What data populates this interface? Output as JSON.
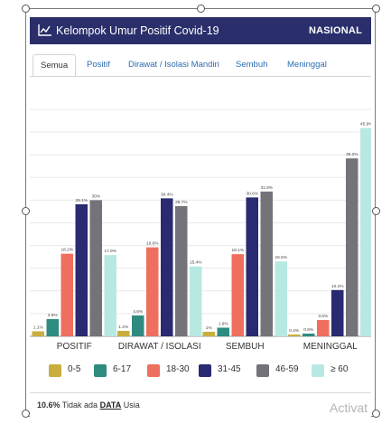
{
  "header": {
    "title": "Kelompok Umur Positif Covid-19",
    "badge": "NASIONAL",
    "icon": "line-chart-icon"
  },
  "tabs": [
    {
      "label": "Semua",
      "active": true
    },
    {
      "label": "Positif",
      "active": false
    },
    {
      "label": "Dirawat / Isolasi Mandiri",
      "active": false
    },
    {
      "label": "Sembuh",
      "active": false
    },
    {
      "label": "Meninggal",
      "active": false
    }
  ],
  "chart_data": {
    "type": "bar",
    "categories": [
      "POSITIF",
      "DIRAWAT / ISOLASI",
      "SEMBUH",
      "MENINGGAL"
    ],
    "series": [
      {
        "name": "0-5",
        "color": "#c9ae3e",
        "values": [
          1.1,
          1.2,
          1.0,
          0.4
        ],
        "labels": [
          "1.1%",
          "1.2%",
          "1%",
          "0.4%"
        ]
      },
      {
        "name": "6-17",
        "color": "#2e8b80",
        "values": [
          3.8,
          4.6,
          1.9,
          0.6
        ],
        "labels": [
          "3.8%",
          "4.6%",
          "1.9%",
          "0.6%"
        ]
      },
      {
        "name": "18-30",
        "color": "#ef6f5e",
        "values": [
          18.2,
          19.6,
          18.1,
          3.6
        ],
        "labels": [
          "18.2%",
          "19.6%",
          "18.1%",
          "3.6%"
        ]
      },
      {
        "name": "31-45",
        "color": "#2a2a72",
        "values": [
          29.1,
          30.4,
          30.6,
          10.2
        ],
        "labels": [
          "29.1%",
          "30.4%",
          "30.6%",
          "10.2%"
        ]
      },
      {
        "name": "46-59",
        "color": "#74737a",
        "values": [
          30.0,
          28.7,
          31.9,
          39.2
        ],
        "labels": [
          "30%",
          "28.7%",
          "31.9%",
          "39.2%"
        ]
      },
      {
        "name": "≥ 60",
        "color": "#b8e8e2",
        "values": [
          17.9,
          15.4,
          16.5,
          45.9
        ],
        "labels": [
          "17.9%",
          "15.4%",
          "16.5%",
          "45.9%"
        ]
      }
    ],
    "ylim": [
      0,
      50
    ],
    "grid": true,
    "legend_position": "bottom"
  },
  "footer": {
    "pct": "10.6%",
    "text_before": "Tidak ada",
    "link": "DATA",
    "text_after": "Usia"
  },
  "watermark": "Activat"
}
